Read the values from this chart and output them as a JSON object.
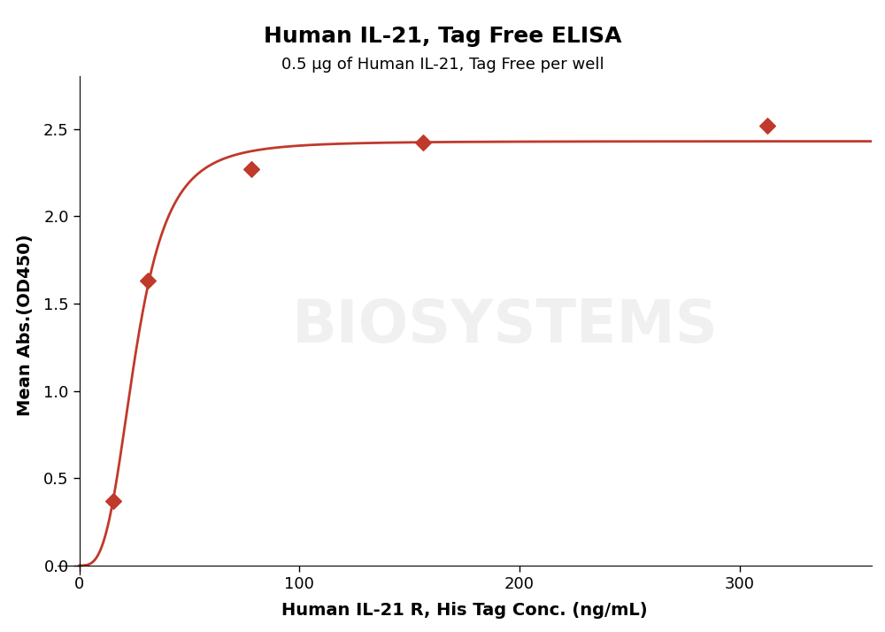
{
  "title": "Human IL-21, Tag Free ELISA",
  "subtitle": "0.5 μg of Human IL-21, Tag Free per well",
  "xlabel": "Human IL-21 R, His Tag Conc. (ng/mL)",
  "ylabel": "Mean Abs.(OD450)",
  "x_data": [
    15.625,
    31.25,
    78.125,
    156.25,
    312.5
  ],
  "y_data": [
    0.37,
    1.63,
    2.27,
    2.42,
    2.52
  ],
  "color": "#C0392B",
  "marker": "D",
  "marker_size": 9,
  "line_width": 2.0,
  "xlim": [
    -10,
    360
  ],
  "ylim": [
    -0.05,
    2.8
  ],
  "yticks": [
    0.0,
    0.5,
    1.0,
    1.5,
    2.0,
    2.5
  ],
  "xticks": [
    0,
    100,
    200,
    300
  ],
  "xticklabels": [
    "0",
    "100",
    "200",
    "300"
  ],
  "title_fontsize": 18,
  "subtitle_fontsize": 13,
  "axis_label_fontsize": 14,
  "tick_fontsize": 13,
  "background_color": "#ffffff",
  "watermark": "BIOSYSTEMS",
  "watermark_color": "#d0d0d0",
  "watermark_fontsize": 48
}
